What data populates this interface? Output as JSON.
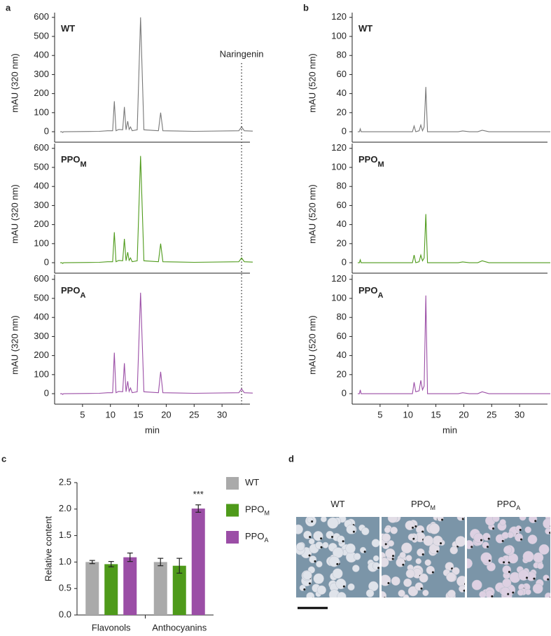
{
  "chart_data": [
    {
      "type": "line",
      "panel_label": "a",
      "title": "WT",
      "color": "#777777",
      "ylabel": "mAU (320 nm)",
      "annotation": {
        "text": "Naringenin",
        "x": 33.5
      },
      "x": [
        1,
        1.3,
        1.45,
        1.6,
        8,
        9.5,
        10.4,
        10.7,
        11.0,
        11.5,
        12.2,
        12.5,
        12.8,
        13.1,
        13.35,
        13.6,
        13.9,
        14.8,
        15.4,
        16.0,
        18.6,
        19.0,
        19.4,
        25,
        33.0,
        33.5,
        34.0,
        35.5
      ],
      "values": [
        0,
        0,
        -4,
        0,
        2,
        5,
        5,
        160,
        5,
        12,
        10,
        130,
        10,
        55,
        12,
        25,
        5,
        10,
        600,
        10,
        5,
        100,
        5,
        2,
        5,
        25,
        5,
        3
      ],
      "xlim": [
        0,
        35
      ],
      "ylim": [
        -55,
        625
      ],
      "yticks": [
        0,
        100,
        200,
        300,
        400,
        500,
        600
      ]
    },
    {
      "type": "line",
      "title": "PPO",
      "title_sub": "M",
      "color": "#4e9a1a",
      "ylabel": "mAU (320 nm)",
      "x": [
        1,
        1.3,
        1.45,
        1.6,
        8,
        9.5,
        10.4,
        10.7,
        11.0,
        11.5,
        12.2,
        12.5,
        12.8,
        13.1,
        13.35,
        13.6,
        13.9,
        14.8,
        15.4,
        16.0,
        18.6,
        19.0,
        19.4,
        25,
        33.0,
        33.5,
        34.0,
        35.5
      ],
      "values": [
        0,
        0,
        -4,
        0,
        2,
        5,
        5,
        160,
        5,
        12,
        10,
        125,
        10,
        55,
        12,
        25,
        5,
        10,
        560,
        10,
        5,
        100,
        5,
        2,
        5,
        25,
        5,
        3
      ],
      "xlim": [
        0,
        35
      ],
      "ylim": [
        -55,
        625
      ],
      "yticks": [
        0,
        100,
        200,
        300,
        400,
        500,
        600
      ]
    },
    {
      "type": "line",
      "title": "PPO",
      "title_sub": "A",
      "color": "#9b4ea6",
      "ylabel": "mAU (320 nm)",
      "xlabel": "min",
      "x": [
        1,
        1.3,
        1.45,
        1.6,
        8,
        9.5,
        10.4,
        10.7,
        11.0,
        11.5,
        12.2,
        12.5,
        12.8,
        13.1,
        13.35,
        13.6,
        13.9,
        14.8,
        15.4,
        16.0,
        18.6,
        19.0,
        19.4,
        25,
        33.0,
        33.5,
        34.0,
        35.5
      ],
      "values": [
        0,
        0,
        -4,
        0,
        2,
        5,
        5,
        215,
        5,
        12,
        10,
        160,
        10,
        65,
        12,
        30,
        5,
        10,
        530,
        10,
        5,
        115,
        5,
        2,
        5,
        25,
        5,
        3
      ],
      "xlim": [
        0,
        35
      ],
      "ylim": [
        -55,
        625
      ],
      "xticks": [
        5,
        10,
        15,
        20,
        25,
        30
      ],
      "yticks": [
        0,
        100,
        200,
        300,
        400,
        500,
        600
      ]
    },
    {
      "type": "line",
      "panel_label": "b",
      "title": "WT",
      "color": "#777777",
      "ylabel": "mAU (520 nm)",
      "x": [
        1,
        1.3,
        1.45,
        1.6,
        10.8,
        11.1,
        11.4,
        12.0,
        12.3,
        12.6,
        12.9,
        13.2,
        13.5,
        14,
        19,
        19.8,
        21,
        22.5,
        23.3,
        24.5,
        35.5
      ],
      "values": [
        0,
        0,
        3,
        0,
        0,
        6,
        0,
        1,
        7,
        1,
        5,
        47,
        0,
        0,
        0,
        0.8,
        0,
        0,
        1.5,
        0,
        0
      ],
      "xlim": [
        0,
        35
      ],
      "ylim": [
        -11,
        125
      ],
      "yticks": [
        0,
        20,
        40,
        60,
        80,
        100,
        120
      ]
    },
    {
      "type": "line",
      "title": "PPO",
      "title_sub": "M",
      "color": "#4e9a1a",
      "ylabel": "mAU (520 nm)",
      "x": [
        1,
        1.3,
        1.45,
        1.6,
        10.8,
        11.1,
        11.4,
        12.0,
        12.3,
        12.6,
        12.9,
        13.2,
        13.5,
        14,
        19,
        19.8,
        21,
        22.5,
        23.3,
        24.5,
        35.5
      ],
      "values": [
        0,
        0,
        3,
        0,
        0,
        8,
        0,
        1,
        8,
        2,
        5,
        51,
        0,
        0,
        0,
        0.8,
        0,
        0,
        2,
        0,
        0
      ],
      "xlim": [
        0,
        35
      ],
      "ylim": [
        -11,
        125
      ],
      "yticks": [
        0,
        20,
        40,
        60,
        80,
        100,
        120
      ]
    },
    {
      "type": "line",
      "title": "PPO",
      "title_sub": "A",
      "color": "#9b4ea6",
      "ylabel": "mAU (520 nm)",
      "xlabel": "min",
      "x": [
        1,
        1.3,
        1.45,
        1.6,
        10.8,
        11.1,
        11.4,
        12.0,
        12.3,
        12.6,
        12.9,
        13.2,
        13.5,
        14,
        19,
        19.8,
        21,
        22.5,
        23.3,
        24.5,
        35.5
      ],
      "values": [
        0,
        0,
        4,
        0,
        0,
        12,
        2,
        3,
        14,
        4,
        8,
        103,
        0,
        0,
        0,
        1,
        0,
        0,
        2,
        0,
        0
      ],
      "xlim": [
        0,
        35
      ],
      "ylim": [
        -11,
        125
      ],
      "xticks": [
        5,
        10,
        15,
        20,
        25,
        30
      ],
      "yticks": [
        0,
        20,
        40,
        60,
        80,
        100,
        120
      ]
    },
    {
      "type": "bar",
      "panel_label": "c",
      "ylabel": "Relative content",
      "annotation": "***",
      "categories": [
        "Flavonols",
        "Anthocyanins"
      ],
      "series": [
        {
          "name": "WT",
          "color": "#aaaaaa",
          "values": [
            1.0,
            1.0
          ],
          "errors": [
            0.03,
            0.07
          ]
        },
        {
          "name": "PPO",
          "name_sub": "M",
          "color": "#4e9a1a",
          "values": [
            0.96,
            0.93
          ],
          "errors": [
            0.05,
            0.14
          ]
        },
        {
          "name": "PPO",
          "name_sub": "A",
          "color": "#9b4ea6",
          "values": [
            1.09,
            2.01
          ],
          "errors": [
            0.08,
            0.07
          ]
        }
      ],
      "ylim": [
        0,
        2.5
      ],
      "yticks": [
        {
          "value": 0,
          "label": "0.0"
        },
        0.5,
        {
          "value": 1,
          "label": "1.0"
        },
        1.5,
        {
          "value": 2,
          "label": "2.0"
        },
        2.5
      ]
    }
  ],
  "photo_panel": {
    "panel_label": "d",
    "titles": [
      {
        "text": "WT"
      },
      {
        "text": "PPO",
        "sub": "M"
      },
      {
        "text": "PPO",
        "sub": "A"
      }
    ]
  }
}
